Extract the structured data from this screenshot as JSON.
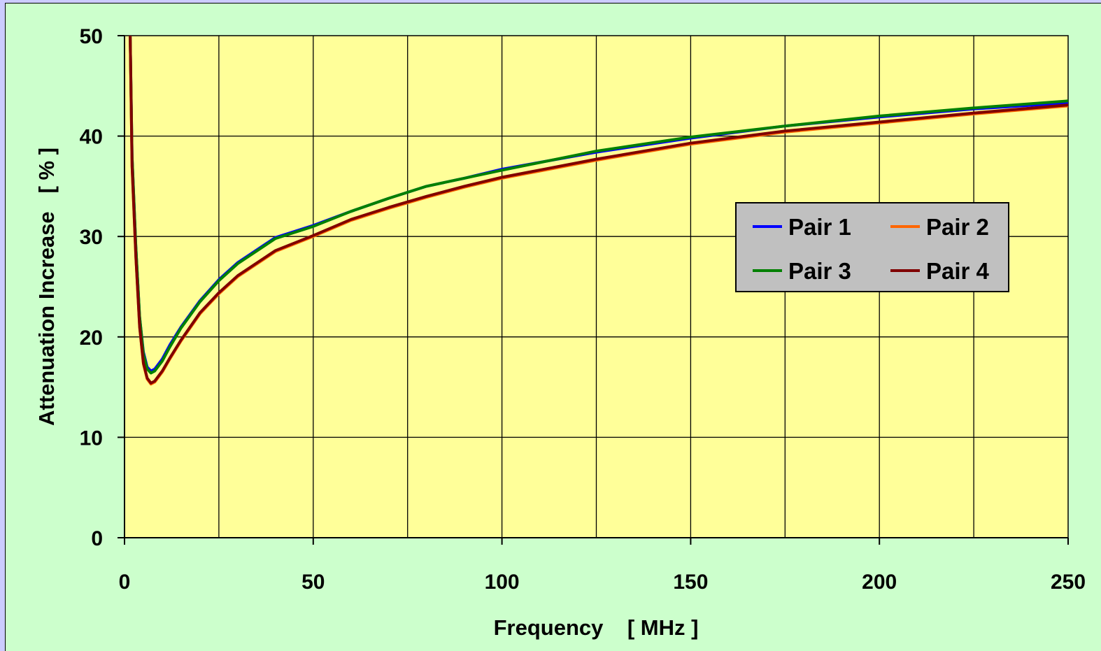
{
  "chart_data": {
    "type": "line",
    "title": "",
    "xlabel": "Frequency    [ MHz ]",
    "ylabel": "Attenuation Increase   [ % ]",
    "xlim": [
      0,
      250
    ],
    "ylim": [
      0,
      50
    ],
    "x_ticks": [
      "0",
      "50",
      "100",
      "150",
      "200",
      "250"
    ],
    "y_ticks": [
      "0",
      "10",
      "20",
      "30",
      "40",
      "50"
    ],
    "grid": true,
    "legend_position": "right",
    "colors": {
      "plot_background": "#ffff99",
      "frame_background": "#ccffcc",
      "page_background": "#ccccff",
      "legend_background": "#c0c0c0"
    },
    "series": [
      {
        "name": "Pair 1",
        "color": "#0000ff",
        "x": [
          1.5,
          2,
          3,
          4,
          5,
          6,
          7,
          8,
          10,
          12,
          15,
          20,
          25,
          30,
          40,
          50,
          60,
          70,
          80,
          90,
          100,
          125,
          150,
          175,
          200,
          225,
          250
        ],
        "y": [
          50,
          38,
          29,
          22,
          18.5,
          17,
          16.6,
          16.8,
          17.8,
          19.2,
          21,
          23.6,
          25.7,
          27.4,
          29.9,
          31.1,
          32.5,
          33.8,
          35,
          35.8,
          36.7,
          38.4,
          39.8,
          41,
          41.9,
          42.7,
          43.3
        ]
      },
      {
        "name": "Pair 2",
        "color": "#ff6600",
        "x": [
          1.5,
          2,
          3,
          4,
          5,
          6,
          7,
          8,
          10,
          12,
          15,
          20,
          25,
          30,
          40,
          50,
          60,
          70,
          80,
          90,
          100,
          125,
          150,
          175,
          200,
          225,
          250
        ],
        "y": [
          50,
          37,
          28,
          21,
          17.3,
          15.8,
          15.3,
          15.5,
          16.5,
          17.8,
          19.6,
          22.3,
          24.3,
          26,
          28.5,
          30,
          31.6,
          32.8,
          33.9,
          34.9,
          35.8,
          37.6,
          39.2,
          40.4,
          41.3,
          42.2,
          43
        ]
      },
      {
        "name": "Pair 3",
        "color": "#008000",
        "x": [
          1.5,
          2,
          3,
          4,
          5,
          6,
          7,
          8,
          10,
          12,
          15,
          20,
          25,
          30,
          40,
          50,
          60,
          70,
          80,
          90,
          100,
          125,
          150,
          175,
          200,
          225,
          250
        ],
        "y": [
          50,
          38,
          29,
          22,
          18.3,
          16.8,
          16.4,
          16.6,
          17.6,
          19,
          20.9,
          23.5,
          25.6,
          27.3,
          29.8,
          31,
          32.5,
          33.8,
          35,
          35.8,
          36.6,
          38.5,
          39.9,
          41,
          42,
          42.8,
          43.5
        ]
      },
      {
        "name": "Pair 4",
        "color": "#800000",
        "x": [
          1.5,
          2,
          3,
          4,
          5,
          6,
          7,
          8,
          10,
          12,
          15,
          20,
          25,
          30,
          40,
          50,
          60,
          70,
          80,
          90,
          100,
          125,
          150,
          175,
          200,
          225,
          250
        ],
        "y": [
          50,
          37,
          28,
          21,
          17.4,
          15.9,
          15.4,
          15.6,
          16.6,
          17.9,
          19.7,
          22.4,
          24.4,
          26.1,
          28.6,
          30.1,
          31.7,
          32.9,
          34,
          35,
          35.9,
          37.7,
          39.3,
          40.5,
          41.4,
          42.3,
          43.1
        ]
      }
    ]
  }
}
